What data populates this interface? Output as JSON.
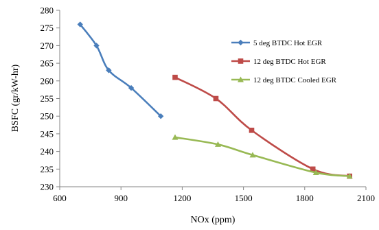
{
  "chart_data": {
    "type": "line",
    "title": "",
    "xlabel": "NOx (ppm)",
    "ylabel": "BSFC (gr/kW-hr)",
    "xlim": [
      600,
      2100
    ],
    "ylim": [
      230,
      280
    ],
    "xticks": [
      600,
      900,
      1200,
      1500,
      1800,
      2100
    ],
    "yticks": [
      230,
      235,
      240,
      245,
      250,
      255,
      260,
      265,
      270,
      275,
      280
    ],
    "grid": false,
    "legend_position": "right",
    "series": [
      {
        "name": "5 deg BTDC Hot EGR",
        "color": "#4a7ebb",
        "marker": "diamond",
        "x": [
          700,
          780,
          840,
          950,
          1095
        ],
        "y": [
          276,
          270,
          263,
          258,
          250
        ]
      },
      {
        "name": "12 deg BTDC Hot EGR",
        "color": "#be4b48",
        "marker": "square",
        "x": [
          1165,
          1365,
          1540,
          1840,
          2020
        ],
        "y": [
          261,
          255,
          246,
          235,
          233
        ]
      },
      {
        "name": "12 deg BTDC Cooled EGR",
        "color": "#98b954",
        "marker": "triangle",
        "x": [
          1165,
          1375,
          1545,
          1855,
          2020
        ],
        "y": [
          244,
          242,
          239,
          234,
          233
        ]
      }
    ]
  }
}
